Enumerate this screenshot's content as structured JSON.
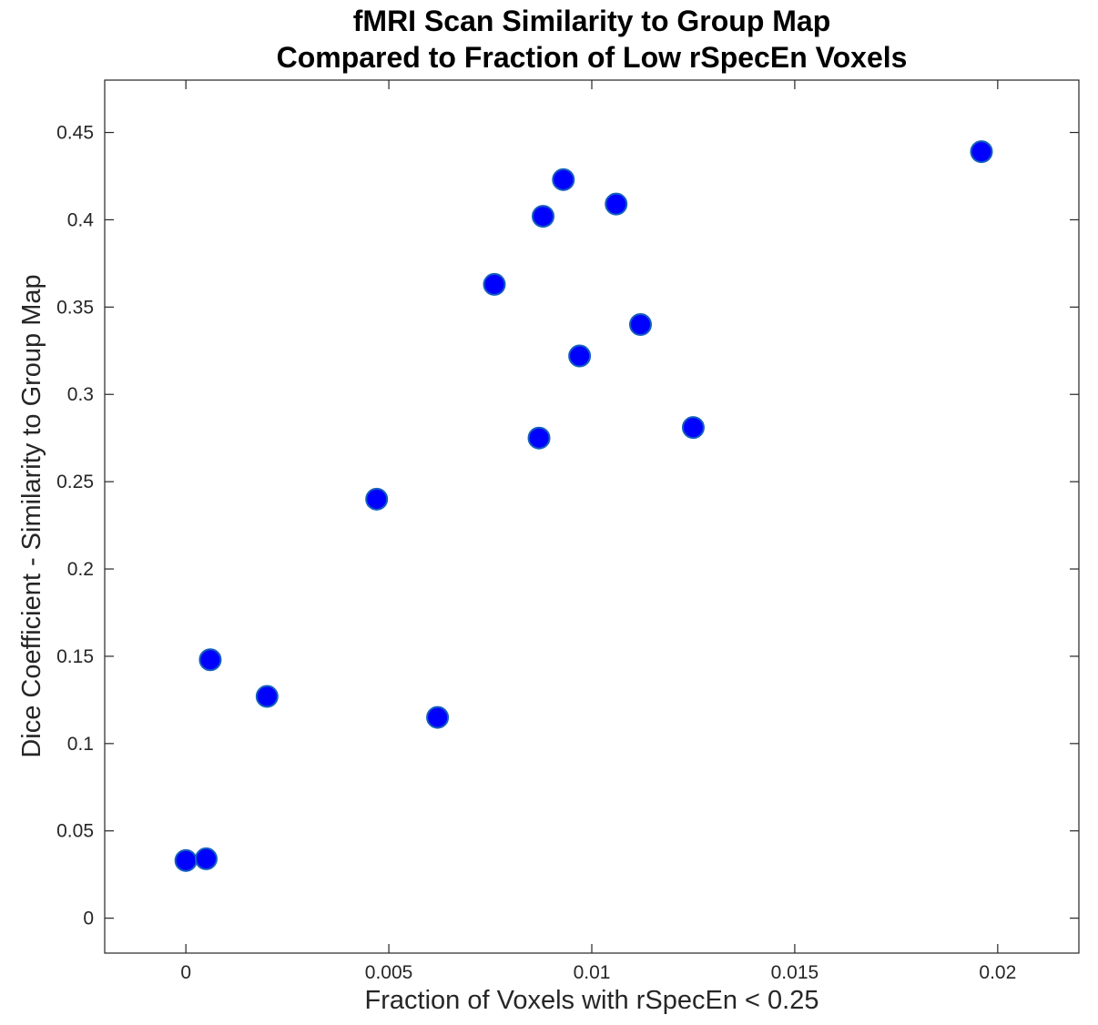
{
  "chart_data": {
    "type": "scatter",
    "title": [
      "fMRI Scan Similarity to Group Map",
      "Compared to Fraction of Low rSpecEn Voxels"
    ],
    "xlabel": "Fraction of Voxels with rSpecEn < 0.25",
    "ylabel": "Dice Coefficient - Similarity to Group Map",
    "xlim": [
      -0.002,
      0.022
    ],
    "ylim": [
      -0.02,
      0.48
    ],
    "xticks": [
      0,
      0.005,
      0.01,
      0.015,
      0.02
    ],
    "xtick_labels": [
      "0",
      "0.005",
      "0.01",
      "0.015",
      "0.02"
    ],
    "yticks": [
      0,
      0.05,
      0.1,
      0.15,
      0.2,
      0.25,
      0.3,
      0.35,
      0.4,
      0.45
    ],
    "ytick_labels": [
      "0",
      "0.05",
      "0.1",
      "0.15",
      "0.2",
      "0.25",
      "0.3",
      "0.35",
      "0.4",
      "0.45"
    ],
    "grid": false,
    "marker_color": "#0000ff",
    "marker_edge_color": "#1560bd",
    "points": [
      {
        "x": 0.0,
        "y": 0.033
      },
      {
        "x": 0.0005,
        "y": 0.034
      },
      {
        "x": 0.0006,
        "y": 0.148
      },
      {
        "x": 0.002,
        "y": 0.127
      },
      {
        "x": 0.0047,
        "y": 0.24
      },
      {
        "x": 0.0062,
        "y": 0.115
      },
      {
        "x": 0.0076,
        "y": 0.363
      },
      {
        "x": 0.0087,
        "y": 0.275
      },
      {
        "x": 0.0088,
        "y": 0.402
      },
      {
        "x": 0.0093,
        "y": 0.423
      },
      {
        "x": 0.0097,
        "y": 0.322
      },
      {
        "x": 0.0106,
        "y": 0.409
      },
      {
        "x": 0.0112,
        "y": 0.34
      },
      {
        "x": 0.0125,
        "y": 0.281
      },
      {
        "x": 0.0196,
        "y": 0.439
      }
    ]
  }
}
